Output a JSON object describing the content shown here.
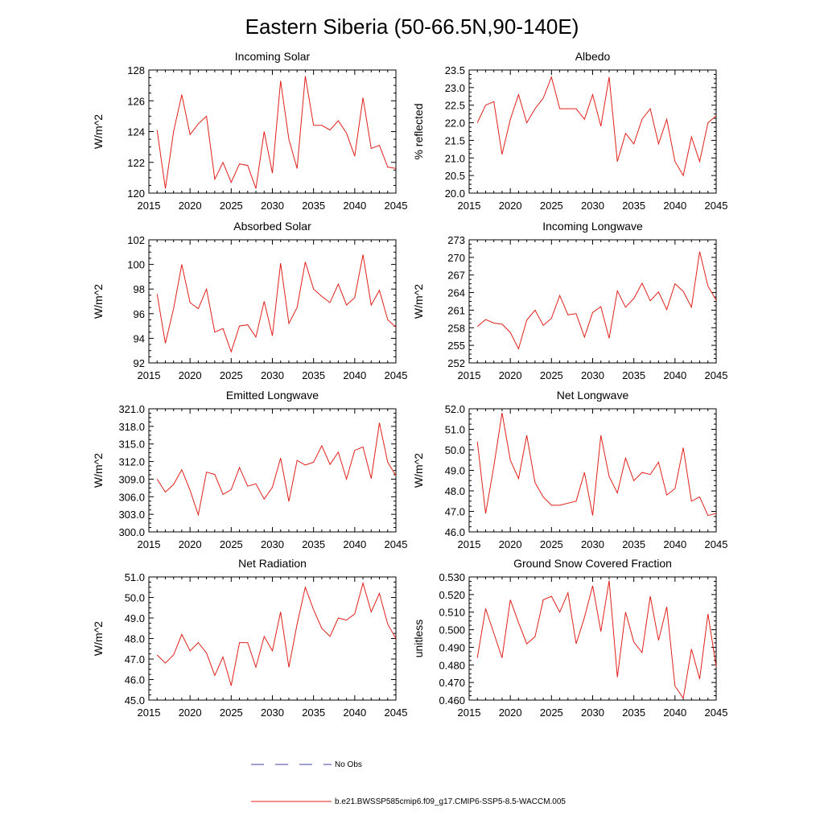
{
  "title": "Eastern Siberia (50-66.5N,90-140E)",
  "legend": {
    "entries": [
      {
        "label": "No Obs",
        "style": "dashed",
        "color": "#4040a0"
      },
      {
        "label": "b.e21.BWSSP585cmip6.f09_g17.CMIP6-SSP5-8.5-WACCM.005",
        "style": "solid",
        "color": "#e0201a"
      }
    ]
  },
  "chart_data": [
    {
      "type": "line",
      "title": "Incoming Solar",
      "ylabel": "W/m^2",
      "xlim": [
        2015,
        2045
      ],
      "ylim": [
        120,
        128
      ],
      "xticks": [
        2015,
        2020,
        2025,
        2030,
        2035,
        2040,
        2045
      ],
      "yticks": [
        "120",
        "122",
        "124",
        "126",
        "128"
      ],
      "series": [
        {
          "name": "b.e21.BWSSP585cmip6.f09_g17.CMIP6-SSP5-8.5-WACCM.005",
          "x_start": 2016,
          "values": [
            124.1,
            120.3,
            124.0,
            126.4,
            123.8,
            124.5,
            125.0,
            120.9,
            122.0,
            120.7,
            121.9,
            121.8,
            120.3,
            124.0,
            121.3,
            127.3,
            123.5,
            121.6,
            127.6,
            124.4,
            124.4,
            124.1,
            124.7,
            123.9,
            122.4,
            126.2,
            122.9,
            123.1,
            121.7,
            121.6
          ]
        }
      ]
    },
    {
      "type": "line",
      "title": "Albedo",
      "ylabel": "% reflected",
      "xlim": [
        2015,
        2045
      ],
      "ylim": [
        20.0,
        23.5
      ],
      "xticks": [
        2015,
        2020,
        2025,
        2030,
        2035,
        2040,
        2045
      ],
      "yticks": [
        "20.0",
        "20.5",
        "21.0",
        "21.5",
        "22.0",
        "22.5",
        "23.0",
        "23.5"
      ],
      "series": [
        {
          "name": "b.e21.BWSSP585cmip6.f09_g17.CMIP6-SSP5-8.5-WACCM.005",
          "x_start": 2016,
          "values": [
            22.0,
            22.5,
            22.6,
            21.1,
            22.1,
            22.8,
            22.0,
            22.4,
            22.7,
            23.3,
            22.4,
            22.4,
            22.4,
            22.1,
            22.8,
            21.9,
            23.3,
            20.9,
            21.7,
            21.4,
            22.1,
            22.4,
            21.4,
            22.1,
            20.9,
            20.5,
            21.6,
            20.9,
            22.0,
            22.2
          ]
        }
      ]
    },
    {
      "type": "line",
      "title": "Absorbed Solar",
      "ylabel": "W/m^2",
      "xlim": [
        2015,
        2045
      ],
      "ylim": [
        92,
        102
      ],
      "xticks": [
        2015,
        2020,
        2025,
        2030,
        2035,
        2040,
        2045
      ],
      "yticks": [
        "92",
        "94",
        "96",
        "98",
        "100",
        "102"
      ],
      "series": [
        {
          "name": "b.e21.BWSSP585cmip6.f09_g17.CMIP6-SSP5-8.5-WACCM.005",
          "x_start": 2016,
          "values": [
            97.6,
            93.6,
            96.4,
            100.0,
            96.9,
            96.4,
            98.0,
            94.5,
            94.8,
            92.9,
            95.0,
            95.1,
            94.1,
            97.0,
            94.2,
            100.1,
            95.2,
            96.5,
            100.2,
            98.0,
            97.4,
            96.9,
            98.4,
            96.7,
            97.3,
            100.8,
            96.7,
            97.9,
            95.5,
            94.9
          ]
        }
      ]
    },
    {
      "type": "line",
      "title": "Incoming Longwave",
      "ylabel": "W/m^2",
      "xlim": [
        2015,
        2045
      ],
      "ylim": [
        252,
        273
      ],
      "xticks": [
        2015,
        2020,
        2025,
        2030,
        2035,
        2040,
        2045
      ],
      "yticks": [
        "252",
        "255",
        "258",
        "261",
        "264",
        "267",
        "270",
        "273"
      ],
      "series": [
        {
          "name": "b.e21.BWSSP585cmip6.f09_g17.CMIP6-SSP5-8.5-WACCM.005",
          "x_start": 2016,
          "values": [
            258.2,
            259.4,
            258.8,
            258.6,
            257.2,
            254.4,
            259.3,
            261.0,
            258.4,
            259.6,
            263.5,
            260.2,
            260.4,
            256.4,
            260.6,
            261.6,
            256.2,
            264.3,
            261.5,
            263.0,
            265.6,
            262.6,
            264.1,
            261.1,
            265.5,
            264.2,
            261.5,
            271.0,
            265.1,
            262.7
          ]
        }
      ]
    },
    {
      "type": "line",
      "title": "Emitted Longwave",
      "ylabel": "W/m^2",
      "xlim": [
        2015,
        2045
      ],
      "ylim": [
        300.0,
        321.0
      ],
      "xticks": [
        2015,
        2020,
        2025,
        2030,
        2035,
        2040,
        2045
      ],
      "yticks": [
        "300.0",
        "303.0",
        "306.0",
        "309.0",
        "312.0",
        "315.0",
        "318.0",
        "321.0"
      ],
      "series": [
        {
          "name": "b.e21.BWSSP585cmip6.f09_g17.CMIP6-SSP5-8.5-WACCM.005",
          "x_start": 2016,
          "values": [
            309.0,
            306.8,
            308.1,
            310.6,
            307.1,
            302.9,
            310.2,
            309.8,
            306.4,
            307.2,
            311.0,
            307.8,
            308.2,
            305.6,
            307.6,
            312.6,
            305.2,
            312.2,
            311.4,
            311.9,
            314.7,
            311.5,
            313.6,
            309.0,
            313.9,
            314.5,
            309.1,
            318.6,
            311.9,
            309.6
          ]
        }
      ]
    },
    {
      "type": "line",
      "title": "Net Longwave",
      "ylabel": "W/m^2",
      "xlim": [
        2015,
        2045
      ],
      "ylim": [
        46.0,
        52.0
      ],
      "xticks": [
        2015,
        2020,
        2025,
        2030,
        2035,
        2040,
        2045
      ],
      "yticks": [
        "46.0",
        "47.0",
        "48.0",
        "49.0",
        "50.0",
        "51.0",
        "52.0"
      ],
      "series": [
        {
          "name": "b.e21.BWSSP585cmip6.f09_g17.CMIP6-SSP5-8.5-WACCM.005",
          "x_start": 2016,
          "values": [
            50.4,
            46.9,
            49.2,
            51.8,
            49.5,
            48.6,
            50.7,
            48.4,
            47.7,
            47.3,
            47.3,
            47.4,
            47.5,
            48.9,
            46.8,
            50.7,
            48.7,
            47.9,
            49.6,
            48.5,
            48.9,
            48.8,
            49.4,
            47.8,
            48.1,
            50.1,
            47.5,
            47.7,
            46.8,
            46.9
          ]
        }
      ]
    },
    {
      "type": "line",
      "title": "Net Radiation",
      "ylabel": "W/m^2",
      "xlim": [
        2015,
        2045
      ],
      "ylim": [
        45.0,
        51.0
      ],
      "xticks": [
        2015,
        2020,
        2025,
        2030,
        2035,
        2040,
        2045
      ],
      "yticks": [
        "45.0",
        "46.0",
        "47.0",
        "48.0",
        "49.0",
        "50.0",
        "51.0"
      ],
      "series": [
        {
          "name": "b.e21.BWSSP585cmip6.f09_g17.CMIP6-SSP5-8.5-WACCM.005",
          "x_start": 2016,
          "values": [
            47.2,
            46.8,
            47.2,
            48.2,
            47.4,
            47.8,
            47.3,
            46.2,
            47.1,
            45.7,
            47.8,
            47.8,
            46.6,
            48.1,
            47.4,
            49.3,
            46.6,
            48.7,
            50.5,
            49.4,
            48.5,
            48.1,
            49.0,
            48.9,
            49.2,
            50.7,
            49.3,
            50.2,
            48.7,
            48.0
          ]
        }
      ]
    },
    {
      "type": "line",
      "title": "Ground Snow Covered Fraction",
      "ylabel": "unitless",
      "xlim": [
        2015,
        2045
      ],
      "ylim": [
        0.46,
        0.53
      ],
      "xticks": [
        2015,
        2020,
        2025,
        2030,
        2035,
        2040,
        2045
      ],
      "yticks": [
        "0.460",
        "0.470",
        "0.480",
        "0.490",
        "0.500",
        "0.510",
        "0.520",
        "0.530"
      ],
      "series": [
        {
          "name": "b.e21.BWSSP585cmip6.f09_g17.CMIP6-SSP5-8.5-WACCM.005",
          "x_start": 2016,
          "values": [
            0.484,
            0.512,
            0.498,
            0.484,
            0.517,
            0.504,
            0.492,
            0.496,
            0.517,
            0.519,
            0.51,
            0.521,
            0.492,
            0.507,
            0.525,
            0.499,
            0.528,
            0.473,
            0.51,
            0.493,
            0.487,
            0.519,
            0.494,
            0.513,
            0.468,
            0.461,
            0.489,
            0.472,
            0.509,
            0.479
          ]
        }
      ]
    }
  ]
}
